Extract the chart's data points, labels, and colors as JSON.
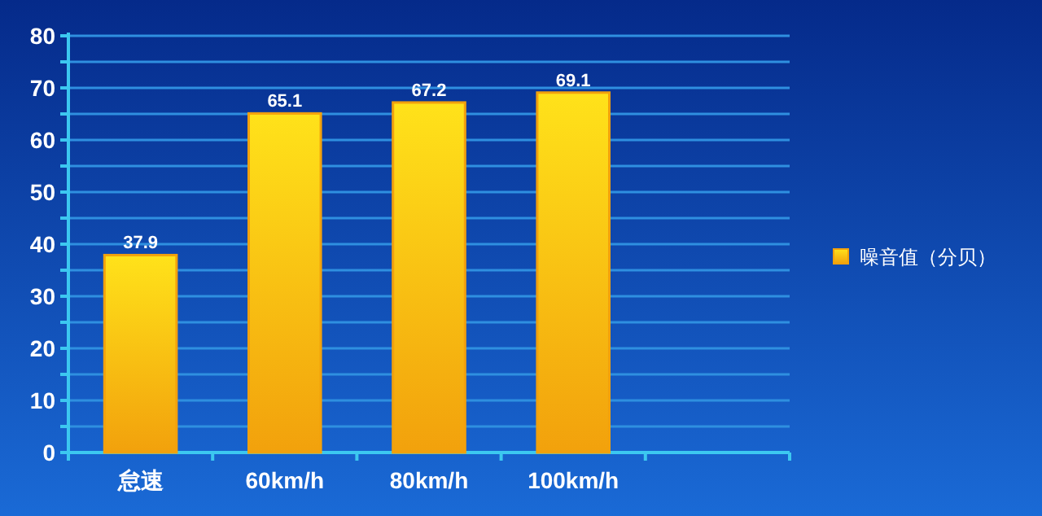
{
  "chart_data": {
    "type": "bar",
    "categories": [
      "怠速",
      "60km/h",
      "80km/h",
      "100km/h",
      null
    ],
    "series": [
      {
        "name": "噪音值（分贝）",
        "color": "#f2a10c",
        "values": [
          37.9,
          65.1,
          67.2,
          69.1,
          null
        ]
      }
    ],
    "ylim": [
      0,
      80
    ],
    "yticks": [
      0,
      {
        "value": 5,
        "label": null
      },
      10,
      {
        "value": 15,
        "label": null
      },
      20,
      {
        "value": 25,
        "label": null
      },
      30,
      {
        "value": 35,
        "label": null
      },
      40,
      {
        "value": 45,
        "label": null
      },
      50,
      {
        "value": 55,
        "label": null
      },
      60,
      {
        "value": 65,
        "label": null
      },
      70,
      {
        "value": 75,
        "label": null
      },
      80
    ],
    "grid": "y",
    "legend": "right",
    "data_labels": true
  }
}
